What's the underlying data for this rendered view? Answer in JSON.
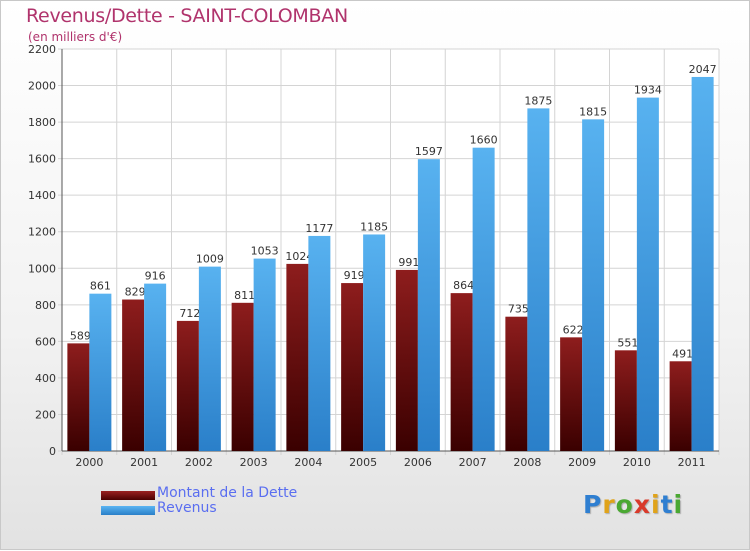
{
  "chart_data": {
    "type": "bar",
    "title": "Revenus/Dette - SAINT-COLOMBAN",
    "subtitle": "(en milliers d'€)",
    "categories": [
      "2000",
      "2001",
      "2002",
      "2003",
      "2004",
      "2005",
      "2006",
      "2007",
      "2008",
      "2009",
      "2010",
      "2011"
    ],
    "series": [
      {
        "name": "Montant de la Dette",
        "color": "#8a1414",
        "values": [
          589,
          829,
          712,
          811,
          1024,
          919,
          991,
          864,
          735,
          622,
          551,
          491
        ]
      },
      {
        "name": "Revenus",
        "color": "#4aa3e6",
        "values": [
          861,
          916,
          1009,
          1053,
          1177,
          1185,
          1597,
          1660,
          1875,
          1815,
          1934,
          2047
        ]
      }
    ],
    "ylim": [
      0,
      2200
    ],
    "yticks": [
      0,
      200,
      400,
      600,
      800,
      1000,
      1200,
      1400,
      1600,
      1800,
      2000,
      2200
    ],
    "xlabel": "",
    "ylabel": "",
    "grid": true,
    "legend_position": "bottom-left"
  },
  "logo": {
    "letters": [
      "P",
      "r",
      "o",
      "x",
      "i",
      "t",
      "i"
    ],
    "colors": [
      "#2f7fd1",
      "#e0a31a",
      "#4aa832",
      "#d93a2b",
      "#e0a31a",
      "#2f7fd1",
      "#4aa832"
    ]
  }
}
